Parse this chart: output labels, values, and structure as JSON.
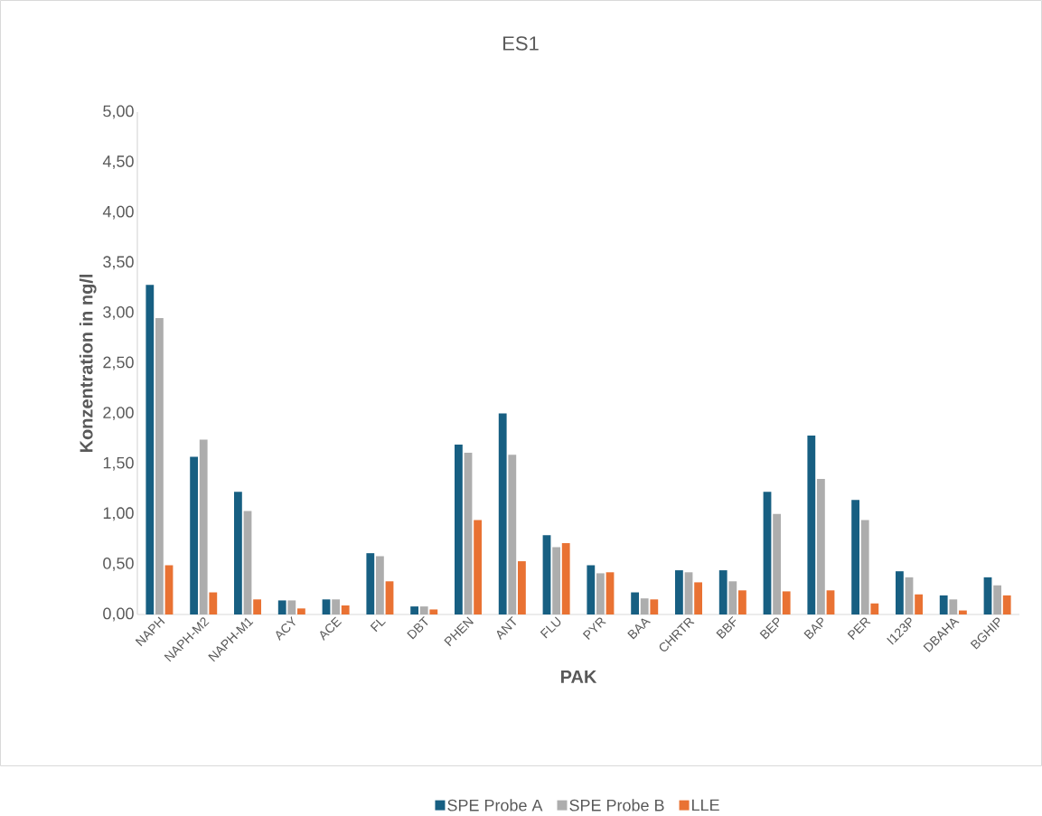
{
  "chart_data": {
    "type": "bar",
    "title": "ES1",
    "xlabel": "PAK",
    "ylabel": "Konzentration in ng/l",
    "categories": [
      "NAPH",
      "NAPH-M2",
      "NAPH-M1",
      "ACY",
      "ACE",
      "FL",
      "DBT",
      "PHEN",
      "ANT",
      "FLU",
      "PYR",
      "BAA",
      "CHRTR",
      "BBF",
      "BEP",
      "BAP",
      "PER",
      "I123P",
      "DBAHA",
      "BGHIP"
    ],
    "series": [
      {
        "name": "SPE Probe A",
        "color": "#175f82",
        "values": [
          3.28,
          1.57,
          1.22,
          0.14,
          0.15,
          0.61,
          0.08,
          1.69,
          2.0,
          0.79,
          0.49,
          0.22,
          0.44,
          0.44,
          1.22,
          1.78,
          1.14,
          0.43,
          0.19,
          0.37
        ]
      },
      {
        "name": "SPE Probe B",
        "color": "#adadad",
        "values": [
          2.95,
          1.74,
          1.03,
          0.14,
          0.15,
          0.58,
          0.08,
          1.61,
          1.59,
          0.67,
          0.41,
          0.16,
          0.42,
          0.33,
          1.0,
          1.35,
          0.94,
          0.37,
          0.15,
          0.29
        ]
      },
      {
        "name": "LLE",
        "color": "#e97233",
        "values": [
          0.49,
          0.22,
          0.15,
          0.06,
          0.09,
          0.33,
          0.05,
          0.94,
          0.53,
          0.71,
          0.42,
          0.15,
          0.32,
          0.24,
          0.23,
          0.24,
          0.11,
          0.2,
          0.04,
          0.19
        ]
      }
    ],
    "ylim": [
      0,
      5
    ],
    "yticks": [
      {
        "value": 0,
        "label": "0,00"
      },
      {
        "value": 0.5,
        "label": "0,50"
      },
      {
        "value": 1,
        "label": "1,00"
      },
      {
        "value": 1.5,
        "label": "1,50"
      },
      {
        "value": 2,
        "label": "2,00"
      },
      {
        "value": 2.5,
        "label": "2,50"
      },
      {
        "value": 3,
        "label": "3,00"
      },
      {
        "value": 3.5,
        "label": "3,50"
      },
      {
        "value": 4,
        "label": "4,00"
      },
      {
        "value": 4.5,
        "label": "4,50"
      },
      {
        "value": 5,
        "label": "5,00"
      }
    ],
    "grid": false,
    "legend": "bottom"
  }
}
